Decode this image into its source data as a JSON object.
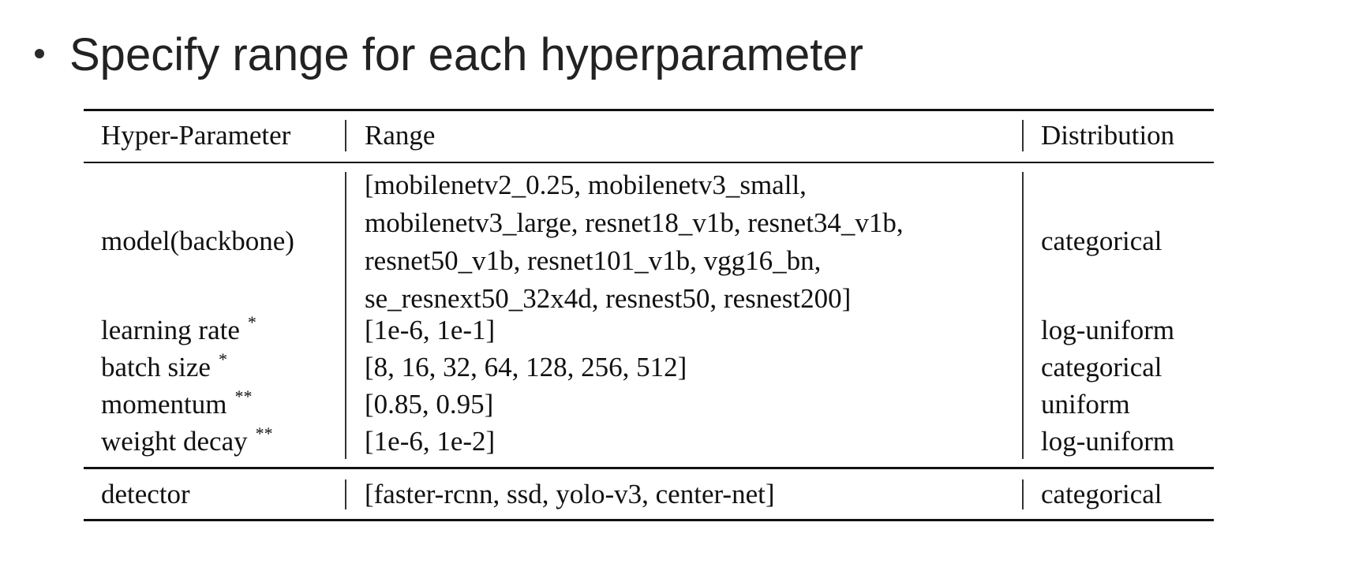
{
  "slide": {
    "title": "Specify range for each hyperparameter"
  },
  "table": {
    "headers": {
      "param": "Hyper-Parameter",
      "range": "Range",
      "dist": "Distribution"
    },
    "rows": [
      {
        "name": "model(backbone)",
        "marker": "",
        "range_lines": [
          "[mobilenetv2_0.25, mobilenetv3_small,",
          "mobilenetv3_large, resnet18_v1b, resnet34_v1b,",
          "resnet50_v1b, resnet101_v1b, vgg16_bn,",
          "se_resnext50_32x4d, resnest50, resnest200]"
        ],
        "dist": "categorical"
      },
      {
        "name": "learning rate",
        "marker": "*",
        "range": "[1e-6, 1e-1]",
        "dist": "log-uniform"
      },
      {
        "name": "batch size",
        "marker": "*",
        "range": "[8, 16, 32, 64, 128, 256, 512]",
        "dist": "categorical"
      },
      {
        "name": "momentum",
        "marker": "**",
        "range": "[0.85, 0.95]",
        "dist": "uniform"
      },
      {
        "name": "weight decay",
        "marker": "**",
        "range": "[1e-6, 1e-2]",
        "dist": "log-uniform"
      },
      {
        "name": "detector",
        "marker": "",
        "range": "[faster-rcnn, ssd, yolo-v3, center-net]",
        "dist": "categorical"
      }
    ]
  }
}
